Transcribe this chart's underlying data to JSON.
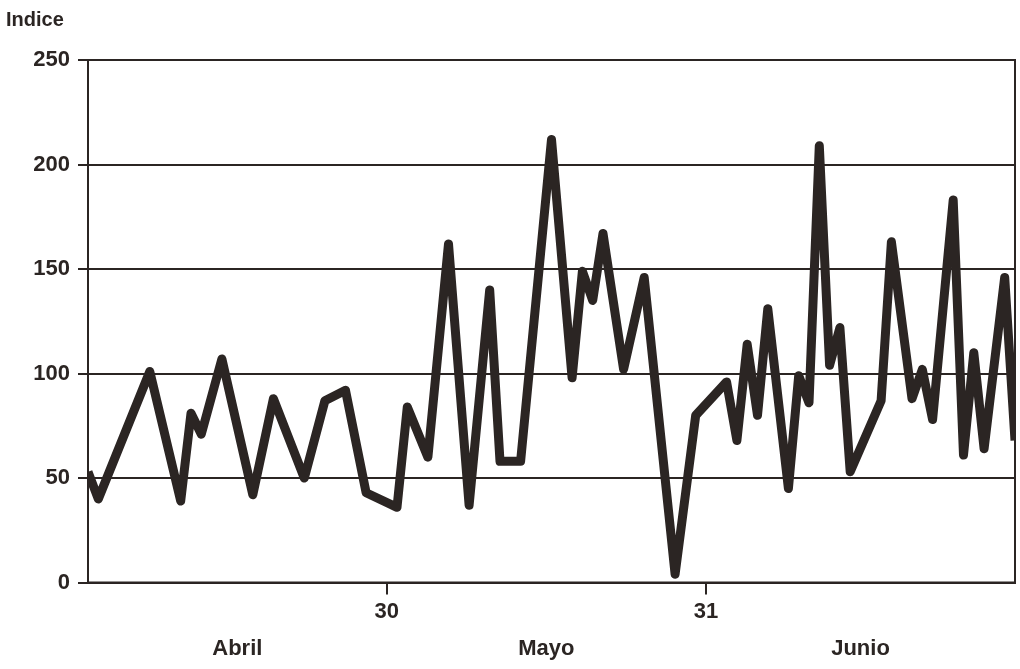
{
  "chart_data": {
    "type": "line",
    "ylabel": "Indice",
    "x": [
      "--04-01",
      "--04-02",
      "--04-07",
      "--04-10",
      "--04-11",
      "--04-12",
      "--04-14",
      "--04-17",
      "--04-19",
      "--04-22",
      "--04-24",
      "--04-26",
      "--04-28",
      "--05-01",
      "--05-02",
      "--05-04",
      "--05-06",
      "--05-08",
      "--05-10",
      "--05-11",
      "--05-13",
      "--05-16",
      "--05-18",
      "--05-19",
      "--05-20",
      "--05-21",
      "--05-23",
      "--05-25",
      "--05-28",
      "--05-30",
      "--06-02",
      "--06-03",
      "--06-04",
      "--06-05",
      "--06-06",
      "--06-08",
      "--06-09",
      "--06-10",
      "--06-11",
      "--06-12",
      "--06-13",
      "--06-14",
      "--06-17",
      "--06-18",
      "--06-20",
      "--06-21",
      "--06-22",
      "--06-24",
      "--06-25",
      "--06-26",
      "--06-27",
      "--06-29",
      "--06-30"
    ],
    "series": [
      {
        "color": "#2b2523",
        "values": [
          53,
          40,
          101,
          39,
          81,
          71,
          107,
          42,
          88,
          50,
          87,
          92,
          43,
          36,
          84,
          60,
          162,
          37,
          140,
          58,
          58,
          212,
          98,
          149,
          135,
          167,
          102,
          146,
          4,
          80,
          96,
          68,
          114,
          80,
          131,
          45,
          99,
          86,
          209,
          104,
          122,
          53,
          87,
          163,
          88,
          102,
          78,
          183,
          61,
          110,
          64,
          146,
          68
        ]
      }
    ],
    "xlim": [
      "--04-01",
      "--06-30"
    ],
    "xticks": [
      {
        "value": "--04-30",
        "label": "30"
      },
      {
        "value": "--05-31",
        "label": "31"
      }
    ],
    "ylim": [
      0,
      250
    ],
    "yticks": [
      0,
      50,
      100,
      150,
      200,
      250
    ],
    "grid": "y",
    "legend": false,
    "marker": "none",
    "line_style": "solid",
    "annotations": [
      "Abril",
      "Mayo",
      "Junio"
    ]
  }
}
